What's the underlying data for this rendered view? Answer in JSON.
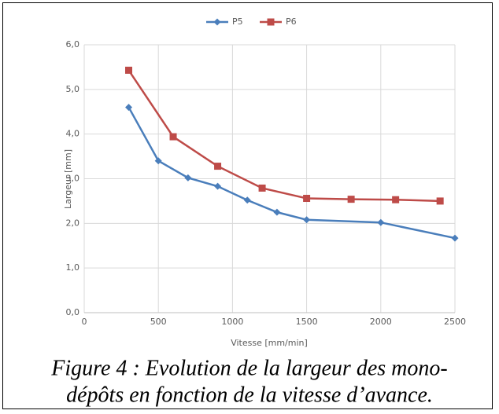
{
  "chart_data": {
    "type": "line",
    "xlabel": "Vitesse [mm/min]",
    "ylabel": "Largeur [mm]",
    "series": [
      {
        "name": "P5",
        "color": "#4a7ebb",
        "marker": "diamond",
        "x": [
          300,
          500,
          700,
          900,
          1100,
          1300,
          1500,
          2000,
          2500
        ],
        "values": [
          4.6,
          3.4,
          3.02,
          2.83,
          2.52,
          2.25,
          2.08,
          2.02,
          1.67
        ]
      },
      {
        "name": "P6",
        "color": "#be4b48",
        "marker": "square",
        "x": [
          300,
          600,
          900,
          1200,
          1500,
          1800,
          2100,
          2400
        ],
        "values": [
          5.43,
          3.94,
          3.28,
          2.79,
          2.56,
          2.54,
          2.53,
          2.5
        ]
      }
    ],
    "xlim": [
      0,
      2500
    ],
    "xticks": [
      0,
      500,
      1000,
      1500,
      2000,
      2500
    ],
    "ylim": [
      0,
      6
    ],
    "yticks": [
      {
        "value": 0,
        "label": "0,0"
      },
      {
        "value": 1,
        "label": "1,0"
      },
      {
        "value": 2,
        "label": "2,0"
      },
      {
        "value": 3,
        "label": "3,0"
      },
      {
        "value": 4,
        "label": "4,0"
      },
      {
        "value": 5,
        "label": "5,0"
      },
      {
        "value": 6,
        "label": "6,0"
      }
    ],
    "grid": true,
    "legend": "top"
  },
  "caption": [
    "Figure 4 : Evolution de la largeur des mono-",
    "dépôts en fonction de la vitesse d’avance."
  ]
}
